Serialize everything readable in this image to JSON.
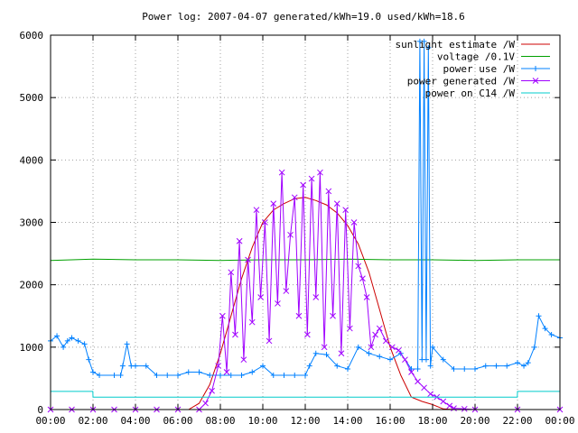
{
  "chart_data": {
    "type": "line",
    "title": "Power log: 2007-04-07 generated/kWh=19.0 used/kWh=18.6",
    "xlabel": "",
    "ylabel": "",
    "xlim": [
      0,
      24
    ],
    "ylim": [
      0,
      6000
    ],
    "x_ticks": [
      "00:00",
      "02:00",
      "04:00",
      "06:00",
      "08:00",
      "10:00",
      "12:00",
      "14:00",
      "16:00",
      "18:00",
      "20:00",
      "22:00",
      "00:00"
    ],
    "y_ticks": [
      "0",
      "1000",
      "2000",
      "3000",
      "4000",
      "5000",
      "6000"
    ],
    "grid": true,
    "legend_position": "top-right",
    "series": [
      {
        "name": "sunlight estimate /W",
        "color": "#cc0000",
        "marker": "none",
        "x": [
          0,
          6.5,
          7.0,
          7.5,
          8.0,
          8.5,
          9.0,
          9.5,
          10.0,
          10.5,
          11.0,
          11.5,
          12.0,
          12.5,
          13.0,
          13.5,
          14.0,
          14.5,
          15.0,
          15.5,
          16.0,
          16.5,
          17.0,
          17.5,
          18.0,
          18.5,
          19.0,
          24
        ],
        "y": [
          0,
          0,
          100,
          400,
          900,
          1500,
          2100,
          2600,
          3000,
          3200,
          3300,
          3380,
          3400,
          3350,
          3280,
          3150,
          2950,
          2650,
          2200,
          1600,
          1000,
          550,
          200,
          130,
          80,
          10,
          0,
          0
        ]
      },
      {
        "name": "voltage /0.1V",
        "color": "#00a000",
        "marker": "none",
        "x": [
          0,
          2,
          4,
          6,
          8,
          10,
          12,
          14,
          16,
          18,
          20,
          22,
          24
        ],
        "y": [
          2390,
          2410,
          2400,
          2400,
          2390,
          2400,
          2400,
          2410,
          2400,
          2400,
          2390,
          2400,
          2400
        ]
      },
      {
        "name": "power use /W",
        "color": "#0080ff",
        "marker": "plus",
        "x": [
          0,
          0.3,
          0.6,
          0.8,
          1.0,
          1.3,
          1.6,
          1.8,
          2.0,
          2.3,
          3.0,
          3.3,
          3.4,
          3.6,
          3.8,
          4.0,
          4.5,
          5.0,
          5.5,
          6.0,
          6.5,
          7.0,
          7.5,
          8.0,
          8.5,
          9.0,
          9.5,
          10.0,
          10.5,
          11.0,
          11.5,
          12.0,
          12.2,
          12.5,
          13.0,
          13.5,
          14.0,
          14.5,
          15.0,
          15.5,
          16.0,
          16.5,
          17.0,
          17.3,
          17.4,
          17.5,
          17.6,
          17.7,
          17.8,
          17.9,
          18.0,
          18.5,
          19.0,
          19.5,
          20.0,
          20.5,
          21.0,
          21.5,
          22.0,
          22.3,
          22.5,
          22.8,
          23.0,
          23.3,
          23.6,
          24.0
        ],
        "y": [
          1100,
          1180,
          1000,
          1100,
          1150,
          1100,
          1050,
          800,
          600,
          550,
          550,
          550,
          700,
          1050,
          700,
          700,
          700,
          550,
          550,
          550,
          600,
          600,
          550,
          550,
          550,
          550,
          600,
          700,
          550,
          550,
          550,
          550,
          700,
          900,
          880,
          700,
          650,
          1000,
          900,
          850,
          800,
          900,
          650,
          650,
          5900,
          800,
          5900,
          800,
          5800,
          700,
          1000,
          800,
          650,
          650,
          650,
          700,
          700,
          700,
          750,
          700,
          750,
          1000,
          1500,
          1300,
          1200,
          1150
        ]
      },
      {
        "name": "power generated /W",
        "color": "#a000ff",
        "marker": "x",
        "x": [
          0,
          1,
          2,
          3,
          4,
          5,
          6,
          7.0,
          7.3,
          7.6,
          7.9,
          8.1,
          8.3,
          8.5,
          8.7,
          8.9,
          9.1,
          9.3,
          9.5,
          9.7,
          9.9,
          10.1,
          10.3,
          10.5,
          10.7,
          10.9,
          11.1,
          11.3,
          11.5,
          11.7,
          11.9,
          12.1,
          12.3,
          12.5,
          12.7,
          12.9,
          13.1,
          13.3,
          13.5,
          13.7,
          13.9,
          14.1,
          14.3,
          14.5,
          14.7,
          14.9,
          15.1,
          15.3,
          15.5,
          15.8,
          16.1,
          16.4,
          16.7,
          17.0,
          17.3,
          17.6,
          17.9,
          18.2,
          18.5,
          18.8,
          19.0,
          19.5,
          20,
          22,
          24
        ],
        "y": [
          0,
          0,
          0,
          0,
          0,
          0,
          0,
          0,
          100,
          300,
          700,
          1500,
          600,
          2200,
          1200,
          2700,
          800,
          2400,
          1400,
          3200,
          1800,
          3000,
          1100,
          3300,
          1700,
          3800,
          1900,
          2800,
          3400,
          1500,
          3600,
          1200,
          3700,
          1800,
          3800,
          1000,
          3500,
          1500,
          3300,
          900,
          3200,
          1300,
          3000,
          2300,
          2100,
          1800,
          1000,
          1200,
          1300,
          1100,
          1000,
          950,
          800,
          600,
          450,
          350,
          250,
          200,
          130,
          60,
          20,
          10,
          0,
          0,
          0
        ]
      },
      {
        "name": "power on C14 /W",
        "color": "#00cccc",
        "marker": "none",
        "x": [
          0,
          1.99,
          2.0,
          21.99,
          22.0,
          24
        ],
        "y": [
          290,
          290,
          200,
          200,
          290,
          290
        ]
      }
    ]
  }
}
